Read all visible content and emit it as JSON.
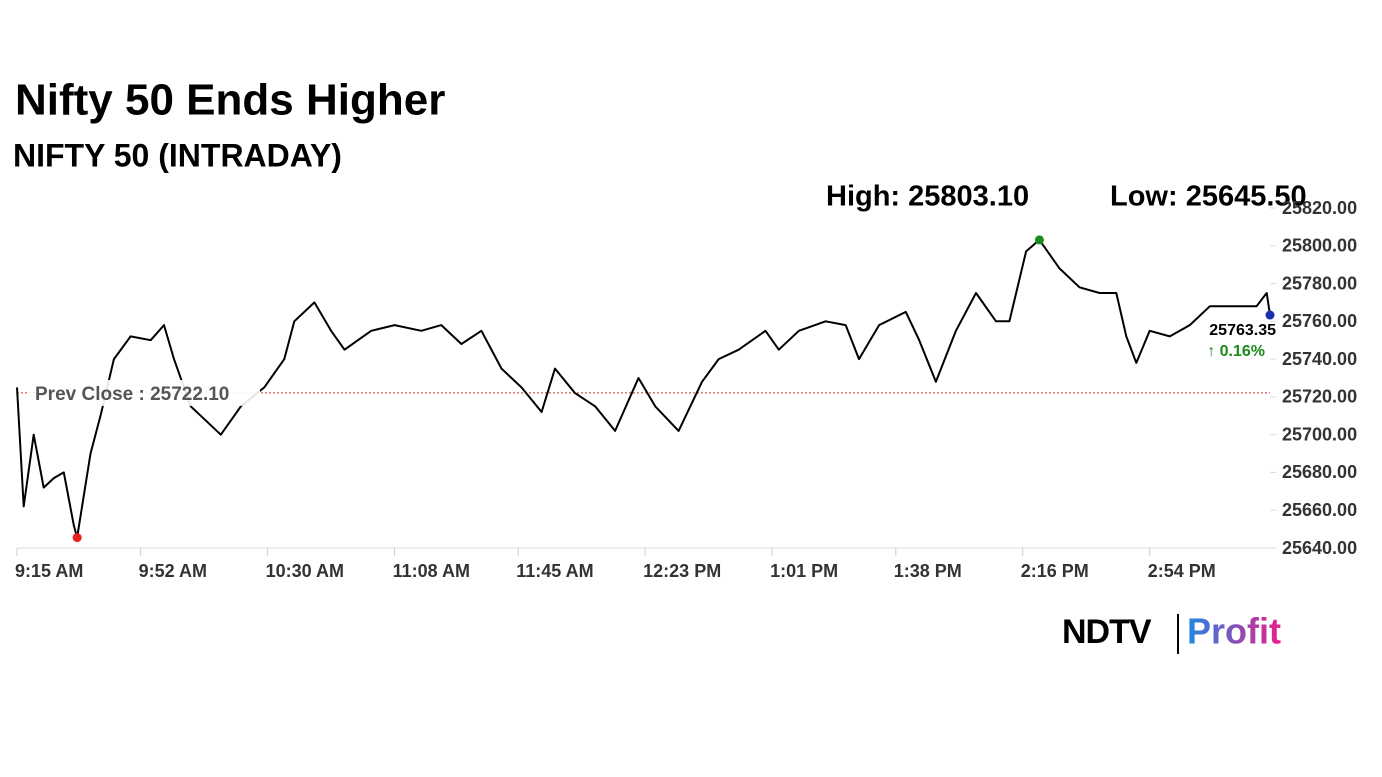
{
  "chart_data": {
    "type": "line",
    "title": "Nifty 50 Ends Higher",
    "subtitle": "NIFTY 50 (INTRADAY)",
    "x": [
      "09:15",
      "09:17",
      "09:20",
      "09:23",
      "09:26",
      "09:29",
      "09:32",
      "09:33",
      "09:37",
      "09:40",
      "09:44",
      "09:49",
      "09:55",
      "09:59",
      "10:02",
      "10:07",
      "10:10",
      "10:16",
      "10:22",
      "10:29",
      "10:35",
      "10:38",
      "10:44",
      "10:49",
      "10:53",
      "11:01",
      "11:08",
      "11:16",
      "11:22",
      "11:28",
      "11:34",
      "11:40",
      "11:46",
      "11:52",
      "11:56",
      "12:02",
      "12:08",
      "12:14",
      "12:21",
      "12:26",
      "12:33",
      "12:40",
      "12:45",
      "12:51",
      "12:59",
      "13:03",
      "13:09",
      "13:17",
      "13:23",
      "13:27",
      "13:33",
      "13:41",
      "13:45",
      "13:50",
      "13:56",
      "14:02",
      "14:08",
      "14:12",
      "14:17",
      "14:21",
      "14:27",
      "14:33",
      "14:39",
      "14:44",
      "14:47",
      "14:50",
      "14:54",
      "15:00",
      "15:06",
      "15:12",
      "15:20",
      "15:26",
      "15:29",
      "15:30"
    ],
    "series": [
      {
        "name": "NIFTY 50",
        "color": "#000000",
        "values": [
          25725,
          25662,
          25700,
          25672,
          25677,
          25680,
          25652,
          25645.5,
          25690,
          25710,
          25740,
          25752,
          25750,
          25758,
          25740,
          25715,
          25710,
          25700,
          25715,
          25725,
          25740,
          25760,
          25770,
          25755,
          25745,
          25755,
          25758,
          25755,
          25758,
          25748,
          25755,
          25735,
          25725,
          25712,
          25735,
          25722,
          25715,
          25702,
          25730,
          25715,
          25702,
          25728,
          25740,
          25745,
          25755,
          25745,
          25755,
          25760,
          25758,
          25740,
          25758,
          25765,
          25750,
          25728,
          25755,
          25775,
          25760,
          25760,
          25797,
          25803.1,
          25788,
          25778,
          25775,
          25775,
          25752,
          25738,
          25755,
          25752,
          25758,
          25768,
          25768,
          25768,
          25775,
          25763.35
        ]
      }
    ],
    "xlim": [
      "09:15",
      "15:30"
    ],
    "xticks": [
      {
        "value": "09:15",
        "label": "9:15 AM"
      },
      {
        "value": "09:52",
        "label": "9:52 AM"
      },
      {
        "value": "10:30",
        "label": "10:30 AM"
      },
      {
        "value": "11:08",
        "label": "11:08 AM"
      },
      {
        "value": "11:45",
        "label": "11:45 AM"
      },
      {
        "value": "12:23",
        "label": "12:23 PM"
      },
      {
        "value": "13:01",
        "label": "1:01 PM"
      },
      {
        "value": "13:38",
        "label": "1:38 PM"
      },
      {
        "value": "14:16",
        "label": "2:16 PM"
      },
      {
        "value": "14:54",
        "label": "2:54 PM"
      }
    ],
    "ylim": [
      25640,
      25820
    ],
    "yticks": [
      {
        "value": 25640,
        "label": "25640.00"
      },
      {
        "value": 25660,
        "label": "25660.00"
      },
      {
        "value": 25680,
        "label": "25680.00"
      },
      {
        "value": 25700,
        "label": "25700.00"
      },
      {
        "value": 25720,
        "label": "25720.00"
      },
      {
        "value": 25740,
        "label": "25740.00"
      },
      {
        "value": 25760,
        "label": "25760.00"
      },
      {
        "value": 25780,
        "label": "25780.00"
      },
      {
        "value": 25800,
        "label": "25800.00"
      },
      {
        "value": 25820,
        "label": "25820.00"
      }
    ],
    "high": {
      "label": "High: 25803.10",
      "value": 25803.1,
      "x": "14:21",
      "color": "#1a8a1a"
    },
    "low": {
      "label": "Low: 25645.50",
      "value": 25645.5,
      "x": "09:33",
      "color": "#e8201e"
    },
    "prev_close": {
      "label": "Prev Close : 25722.10",
      "value": 25722.1,
      "color": "#c0392b"
    },
    "last": {
      "label": "25763.35",
      "value": 25763.35,
      "x": "15:30",
      "change": "↑ 0.16%",
      "color": "#1a2fb0",
      "change_color": "#1a8a1a"
    },
    "brand": [
      "NDTV",
      "Profit"
    ]
  }
}
